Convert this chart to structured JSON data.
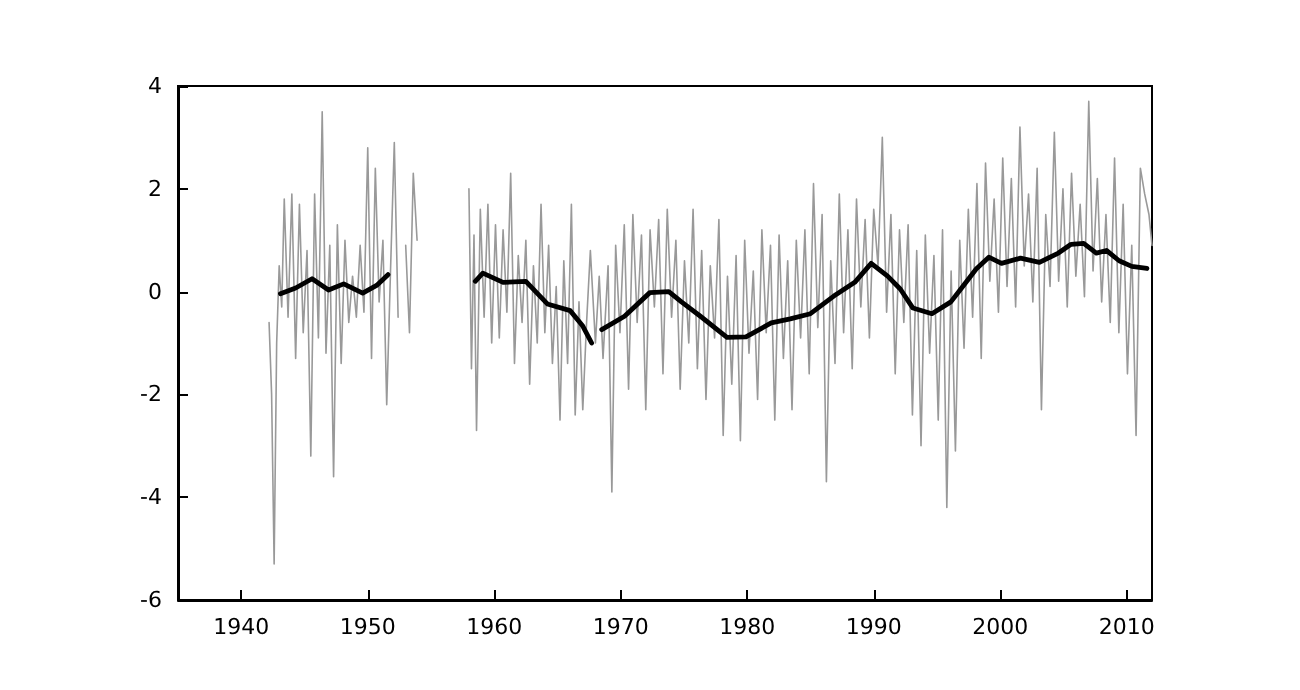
{
  "chart_data": {
    "type": "line",
    "xlim": [
      1935,
      2012
    ],
    "ylim": [
      -6,
      4
    ],
    "xticks": [
      1940,
      1950,
      1960,
      1970,
      1980,
      1990,
      2000,
      2010
    ],
    "yticks": [
      -6,
      -4,
      -2,
      0,
      2,
      4
    ],
    "grid": false,
    "marker": "none",
    "series": [
      {
        "color": "#999999",
        "x": [
          1942.2,
          1942.4,
          1942.6,
          1942.8,
          1943.0,
          1943.2,
          1943.4,
          1943.7,
          1944.0,
          1944.3,
          1944.6,
          1944.9,
          1945.2,
          1945.5,
          1945.8,
          1946.1,
          1946.4,
          1946.7,
          1947.0,
          1947.3,
          1947.6,
          1947.9,
          1948.2,
          1948.5,
          1948.8,
          1949.1,
          1949.4,
          1949.7,
          1950.0,
          1950.3,
          1950.6,
          1950.9,
          1951.2,
          1951.5,
          1951.8,
          1952.1,
          1952.4,
          1952.7,
          1953.0,
          1953.3,
          1953.6,
          1953.9,
          1955.0,
          1958.0,
          1958.2,
          1958.4,
          1958.6,
          1958.9,
          1959.2,
          1959.5,
          1959.8,
          1960.1,
          1960.4,
          1960.7,
          1961.0,
          1961.3,
          1961.6,
          1961.9,
          1962.2,
          1962.5,
          1962.8,
          1963.1,
          1963.4,
          1963.7,
          1964.0,
          1964.3,
          1964.6,
          1964.9,
          1965.2,
          1965.5,
          1965.8,
          1966.1,
          1966.4,
          1966.7,
          1967.0,
          1967.3,
          1967.6,
          1968.0,
          1968.3,
          1968.6,
          1969.0,
          1969.3,
          1969.6,
          1969.94,
          1970.28,
          1970.62,
          1970.96,
          1971.3,
          1971.64,
          1971.98,
          1972.32,
          1972.66,
          1973.0,
          1973.34,
          1973.68,
          1974.02,
          1974.36,
          1974.7,
          1975.04,
          1975.38,
          1975.72,
          1976.06,
          1976.4,
          1976.74,
          1977.08,
          1977.42,
          1977.76,
          1978.1,
          1978.44,
          1978.78,
          1979.12,
          1979.46,
          1979.8,
          1980.14,
          1980.48,
          1980.82,
          1981.16,
          1981.5,
          1981.84,
          1982.18,
          1982.52,
          1982.86,
          1983.2,
          1983.54,
          1983.88,
          1984.22,
          1984.56,
          1984.9,
          1985.24,
          1985.58,
          1985.92,
          1986.26,
          1986.6,
          1986.94,
          1987.28,
          1987.62,
          1987.96,
          1988.3,
          1988.64,
          1988.98,
          1989.32,
          1989.66,
          1990.0,
          1990.34,
          1990.68,
          1991.02,
          1991.36,
          1991.7,
          1992.04,
          1992.38,
          1992.72,
          1993.06,
          1993.4,
          1993.74,
          1994.08,
          1994.42,
          1994.76,
          1995.1,
          1995.44,
          1995.78,
          1996.12,
          1996.46,
          1996.8,
          1997.14,
          1997.48,
          1997.82,
          1998.16,
          1998.5,
          1998.84,
          1999.18,
          1999.52,
          1999.86,
          2000.2,
          2000.54,
          2000.88,
          2001.22,
          2001.56,
          2001.9,
          2002.24,
          2002.58,
          2002.92,
          2003.26,
          2003.6,
          2003.94,
          2004.28,
          2004.62,
          2004.96,
          2005.3,
          2005.64,
          2005.98,
          2006.32,
          2006.66,
          2007.0,
          2007.34,
          2007.68,
          2008.02,
          2008.36,
          2008.7,
          2009.04,
          2009.38,
          2009.72,
          2010.06,
          2010.4,
          2010.74,
          2011.08,
          2011.42,
          2011.76,
          2012.0
        ],
        "values": [
          -0.6,
          -2.0,
          -5.3,
          -1.0,
          0.5,
          -0.3,
          1.8,
          -0.5,
          1.9,
          -1.3,
          1.7,
          -0.8,
          0.8,
          -3.2,
          1.9,
          -0.9,
          3.5,
          -1.2,
          0.9,
          -3.6,
          1.3,
          -1.4,
          1.0,
          -0.6,
          0.3,
          -0.5,
          0.9,
          -0.4,
          2.8,
          -1.3,
          2.4,
          -0.2,
          1.0,
          -2.2,
          0.4,
          2.9,
          -0.5,
          null,
          0.9,
          -0.8,
          2.3,
          1.0,
          null,
          2.0,
          -1.5,
          1.1,
          -2.7,
          1.6,
          -0.5,
          1.7,
          -1.0,
          1.3,
          -0.9,
          1.2,
          -0.4,
          2.3,
          -1.4,
          0.7,
          -0.6,
          1.0,
          -1.8,
          0.5,
          -1.0,
          1.7,
          -0.8,
          0.9,
          -1.4,
          0.1,
          -2.5,
          0.6,
          -1.4,
          1.7,
          -2.4,
          -0.2,
          -2.3,
          -0.6,
          0.8,
          -1.0,
          0.3,
          -1.3,
          0.5,
          -3.9,
          0.9,
          -0.8,
          1.3,
          -1.9,
          1.5,
          -0.6,
          1.1,
          -2.3,
          1.2,
          -0.3,
          1.4,
          -1.6,
          1.6,
          -0.5,
          1.0,
          -1.9,
          0.6,
          -1.0,
          1.6,
          -1.5,
          0.8,
          -2.1,
          0.5,
          -0.9,
          1.4,
          -2.8,
          0.3,
          -1.8,
          0.7,
          -2.9,
          1.0,
          -1.2,
          0.4,
          -2.1,
          1.2,
          -0.8,
          0.9,
          -2.5,
          1.1,
          -1.3,
          0.6,
          -2.3,
          1.0,
          -0.9,
          1.2,
          -1.6,
          2.1,
          -0.7,
          1.5,
          -3.7,
          0.6,
          -1.4,
          1.9,
          -0.8,
          1.2,
          -1.5,
          1.8,
          -0.3,
          1.4,
          -0.9,
          1.6,
          0.5,
          3.0,
          -0.4,
          1.5,
          -1.6,
          1.2,
          -0.6,
          1.3,
          -2.4,
          0.8,
          -3.0,
          1.1,
          -1.2,
          0.7,
          -2.5,
          1.2,
          -4.2,
          0.4,
          -3.1,
          1.0,
          -1.1,
          1.6,
          -0.5,
          2.1,
          -1.3,
          2.5,
          0.2,
          1.8,
          -0.4,
          2.6,
          0.1,
          2.2,
          -0.3,
          3.2,
          0.5,
          1.9,
          -0.2,
          2.4,
          -2.3,
          1.5,
          0.1,
          3.1,
          0.2,
          2.0,
          -0.3,
          2.3,
          0.3,
          1.7,
          -0.1,
          3.7,
          0.4,
          2.2,
          -0.2,
          1.5,
          -0.6,
          2.6,
          -0.8,
          1.7,
          -1.6,
          0.9,
          -2.8,
          2.4,
          1.9,
          1.5,
          0.9
        ]
      },
      {
        "color": "#000000",
        "x": [
          1943.1,
          1944.3,
          1945.6,
          1946.9,
          1948.1,
          1949.6,
          1950.7,
          1951.6,
          1955.0,
          1958.5,
          1959.1,
          1960.7,
          1962.5,
          1964.2,
          1966.0,
          1967.0,
          1967.7,
          1968.1,
          1968.5,
          1970.3,
          1972.3,
          1973.8,
          1974.8,
          1976.3,
          1978.4,
          1979.9,
          1981.9,
          1983.4,
          1985.0,
          1987.0,
          1988.5,
          1989.8,
          1991.1,
          1992.1,
          1993.1,
          1994.6,
          1996.1,
          1997.1,
          1998.1,
          1999.1,
          2000.1,
          2001.6,
          2003.1,
          2004.6,
          2005.6,
          2006.6,
          2007.6,
          2008.4,
          2009.4,
          2010.4,
          2011.6
        ],
        "values": [
          -0.04,
          0.07,
          0.25,
          0.03,
          0.15,
          -0.03,
          0.12,
          0.33,
          null,
          0.2,
          0.36,
          0.18,
          0.2,
          -0.24,
          -0.37,
          -0.67,
          -1.0,
          null,
          -0.74,
          -0.48,
          -0.02,
          0.0,
          -0.2,
          -0.48,
          -0.89,
          -0.88,
          -0.61,
          -0.53,
          -0.43,
          -0.06,
          0.18,
          0.55,
          0.3,
          0.05,
          -0.32,
          -0.43,
          -0.2,
          0.12,
          0.44,
          0.67,
          0.55,
          0.65,
          0.57,
          0.75,
          0.92,
          0.94,
          0.75,
          0.8,
          0.6,
          0.49,
          0.45
        ]
      }
    ]
  }
}
